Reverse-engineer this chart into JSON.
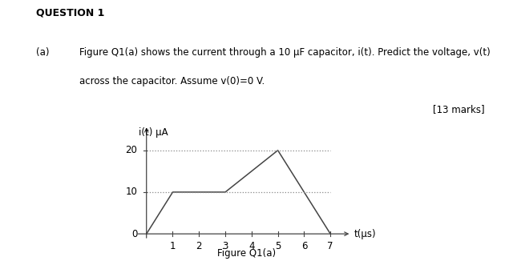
{
  "title_text": "QUESTION 1",
  "question_label": "(a)",
  "question_text1": "Figure Q1(a) shows the current through a 10 μF capacitor, i(t). Predict the voltage, v(t)",
  "question_text2": "across the capacitor. Assume v(0)=0 V.",
  "marks_text": "[13 marks]",
  "figure_caption": "Figure Q1(a)",
  "xlabel": "t(μs)",
  "ylabel": "i(t) μA",
  "waveform_x": [
    0,
    1,
    3,
    5,
    7
  ],
  "waveform_y": [
    0,
    10,
    10,
    20,
    0
  ],
  "dashed_y1": 10,
  "dashed_y2": 20,
  "dashed_xmax": 7,
  "yticks": [
    10,
    20
  ],
  "xticks": [
    1,
    2,
    3,
    4,
    5,
    6,
    7
  ],
  "xlim": [
    -0.4,
    7.8
  ],
  "ylim": [
    -1.5,
    26
  ],
  "line_color": "#444444",
  "dashed_color": "#888888",
  "background_color": "#ffffff",
  "text_color": "#000000",
  "font_size_title": 9,
  "font_size_question": 8.5,
  "font_size_axis_label": 8.5,
  "font_size_tick": 8.5,
  "font_size_caption": 8.5
}
